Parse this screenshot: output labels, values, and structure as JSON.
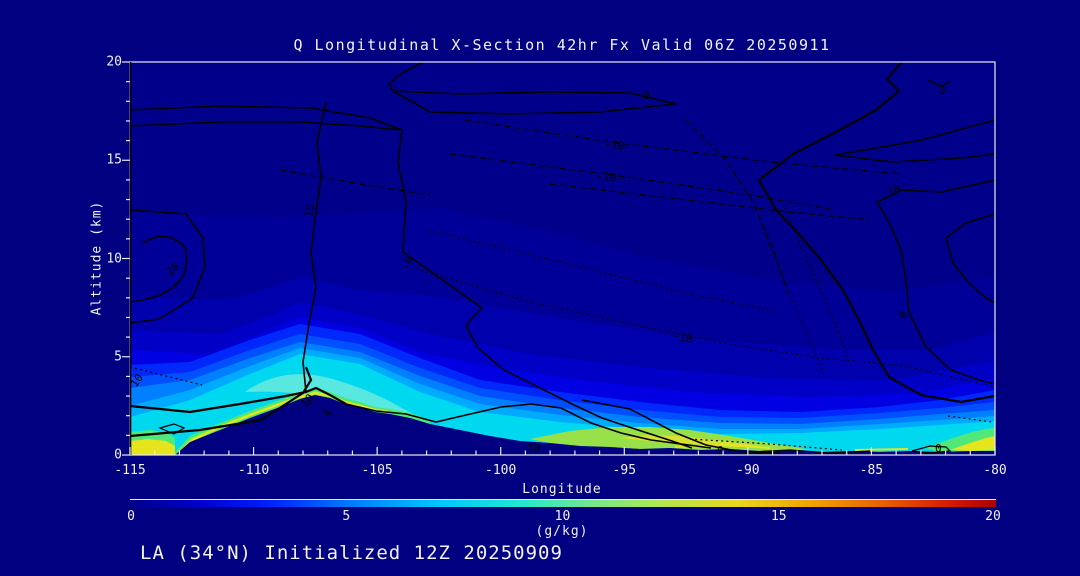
{
  "colors": {
    "background": "#000080",
    "plot_base": "#00008B",
    "frame": "#ECECF4",
    "text": "#F2F2F8",
    "contour": "#000000",
    "fill_levels": [
      "#00008B",
      "#000098",
      "#0000AC",
      "#0000C6",
      "#0000E2",
      "#0028FA",
      "#0050FF",
      "#0080FF",
      "#00AAFF",
      "#00D8F0",
      "#58E8E0",
      "#50E878",
      "#98E048",
      "#E6E41C"
    ]
  },
  "header": {
    "title": "Q Longitudinal X-Section 42hr  Fx Valid 06Z 20250911"
  },
  "footer": {
    "text": "LA (34°N) Initialized 12Z 20250909"
  },
  "axes": {
    "y": {
      "label": "Altitude (km)",
      "ticks": [
        "20",
        "15",
        "10",
        "5",
        "0"
      ]
    },
    "x": {
      "label": "Longitude",
      "ticks": [
        "-115",
        "-110",
        "-105",
        "-100",
        "-95",
        "-90",
        "-85",
        "-80"
      ]
    }
  },
  "colorbar": {
    "ticks": [
      "0",
      "5",
      "10",
      "15",
      "20"
    ],
    "units": "(g/kg)",
    "palette": [
      "#000088",
      "#0000CD",
      "#0020FF",
      "#0080FF",
      "#00C8FF",
      "#20E8D0",
      "#70E890",
      "#B0E850",
      "#E8D820",
      "#F0A000",
      "#E86000",
      "#D82000",
      "#AA0000"
    ]
  },
  "plot": {
    "contour_labels": [
      {
        "text": "0"
      },
      {
        "text": "-10"
      },
      {
        "text": "-20"
      },
      {
        "text": "20"
      },
      {
        "text": "10"
      },
      {
        "text": "0"
      },
      {
        "text": "-10"
      },
      {
        "text": "0"
      },
      {
        "text": "10"
      },
      {
        "text": "0"
      },
      {
        "text": "10"
      },
      {
        "text": "10"
      },
      {
        "text": "4"
      },
      {
        "text": "10"
      },
      {
        "text": "0"
      },
      {
        "text": "0"
      }
    ]
  },
  "chart_data": {
    "type": "heatmap",
    "title": "Q Longitudinal X-Section 42hr  Fx Valid 06Z 20250911",
    "subtitle": "LA (34°N) Initialized 12Z 20250909",
    "xlabel": "Longitude",
    "ylabel": "Altitude (km)",
    "xlim": [
      -115,
      -80
    ],
    "ylim": [
      0,
      20
    ],
    "x_ticks": [
      -115,
      -110,
      -105,
      -100,
      -95,
      -90,
      -85,
      -80
    ],
    "y_ticks": [
      0,
      5,
      10,
      15,
      20
    ],
    "fill_variable": "specific humidity Q, filled contours",
    "colorbar": {
      "label": "(g/kg)",
      "range": [
        0,
        20
      ],
      "ticks": [
        0,
        5,
        10,
        15,
        20
      ],
      "colormap": "jet"
    },
    "overlay_contours": {
      "style": "black lines, negative values dashed/dotted",
      "labeled_values": [
        -20,
        -10,
        0,
        4,
        10,
        20
      ]
    },
    "terrain_height_km_by_lon": {
      "-115": 0.2,
      "-113": 0.6,
      "-112": 1.2,
      "-111": 1.9,
      "-110": 2.4,
      "-109": 2.9,
      "-108": 3.1,
      "-107": 2.6,
      "-106": 2.1,
      "-105": 1.6,
      "-104": 1.2,
      "-103": 0.9,
      "-102": 0.7,
      "-101": 0.5,
      "-100": 0.4,
      "-98": 0.3,
      "-96": 0.2,
      "-92": 0.2,
      "-88": 0.2,
      "-84": 0.2,
      "-80": 0.2
    },
    "surface_Q_gkg_by_lon": {
      "-115": 11,
      "-113": 9,
      "-111": 9,
      "-109": 10,
      "-108": 10,
      "-106": 9,
      "-104": 8,
      "-102": 7,
      "-100": 7,
      "-98": 8,
      "-96": 9,
      "-94": 10,
      "-92": 9,
      "-90": 7,
      "-88": 7,
      "-86": 7,
      "-84": 8,
      "-82": 9,
      "-80": 12
    },
    "moist_layer_top_km_by_lon": {
      "-115": 4.5,
      "-112": 5.5,
      "-110": 6,
      "-108": 6.5,
      "-106": 6,
      "-104": 5,
      "-102": 4.5,
      "-100": 4,
      "-97": 4,
      "-94": 4,
      "-91": 3.5,
      "-88": 3.5,
      "-85": 3.5,
      "-82": 3.8,
      "-80": 4
    }
  }
}
